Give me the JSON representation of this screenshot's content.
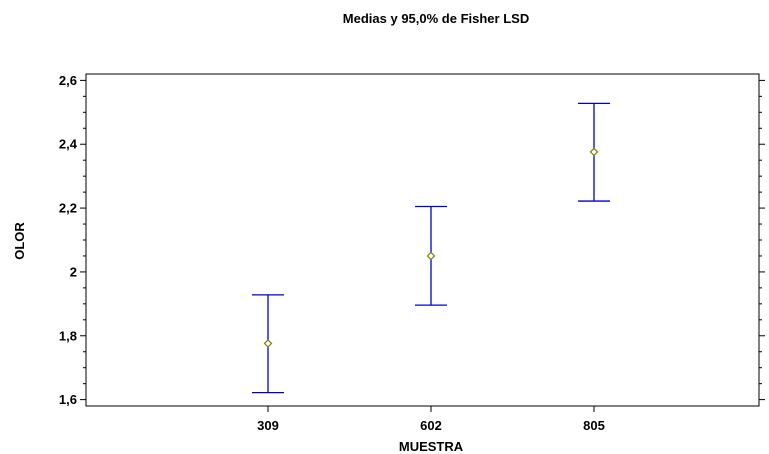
{
  "chart_data": {
    "type": "scatter",
    "title": "Medias y 95,0% de Fisher LSD",
    "xlabel": "MUESTRA",
    "ylabel": "OLOR",
    "categories": [
      "309",
      "602",
      "805"
    ],
    "series": [
      {
        "means": [
          1.776,
          2.05,
          2.376
        ],
        "lower": [
          1.622,
          1.896,
          2.222
        ],
        "upper": [
          1.928,
          2.205,
          2.528
        ]
      }
    ],
    "yticks": [
      "1,6",
      "1,8",
      "2",
      "2,2",
      "2,4",
      "2,6"
    ],
    "ylim": [
      1.58,
      2.62
    ],
    "grid": false,
    "colors": {
      "error_bar": "#0000cc",
      "mean_marker": "#808000",
      "axis": "#000000"
    }
  }
}
